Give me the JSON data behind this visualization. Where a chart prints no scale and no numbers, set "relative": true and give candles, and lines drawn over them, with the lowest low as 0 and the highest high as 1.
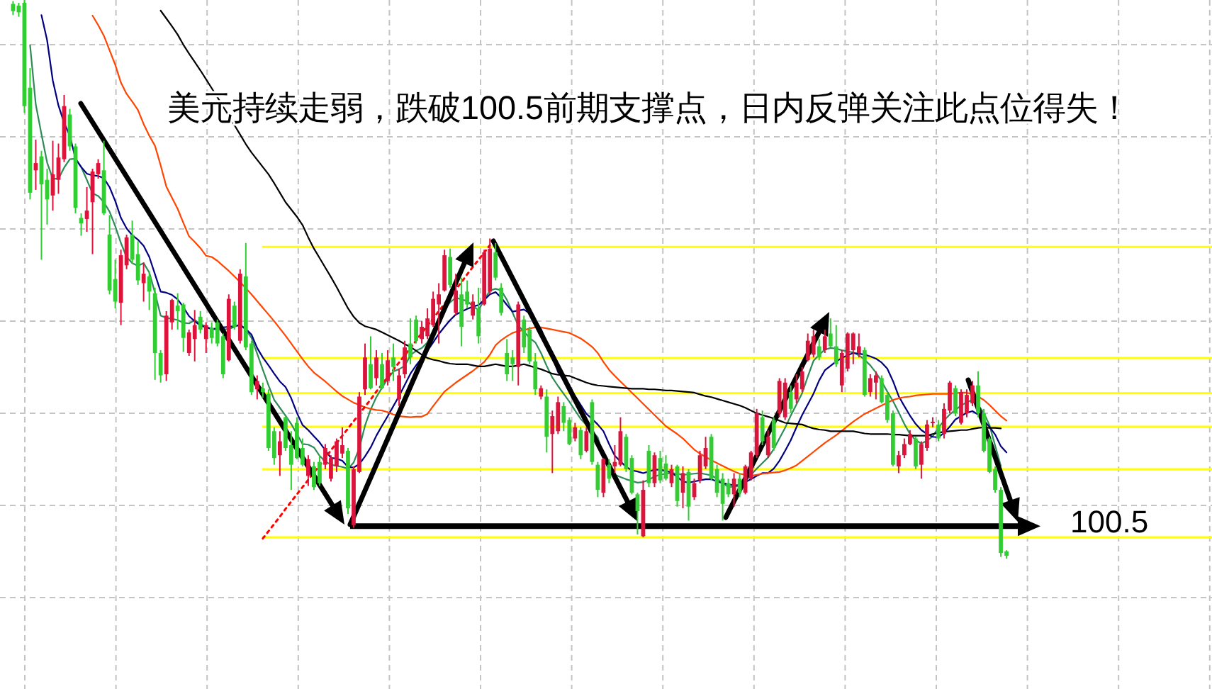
{
  "chart_data": {
    "type": "candlestick",
    "relative": true,
    "grid": true,
    "title": "美元持续走弱，跌破100.5前期支撑点，日内反弹关注此点位得失！",
    "annotations": [
      "100.5"
    ],
    "categories": [
      null,
      null,
      null,
      null,
      null,
      null,
      null,
      null,
      null,
      null,
      null,
      null,
      null,
      null,
      null,
      null,
      null,
      null,
      null,
      null,
      null,
      null,
      null,
      null,
      null,
      null,
      null,
      null,
      null,
      null,
      null,
      null,
      null,
      null,
      null,
      null,
      null,
      null,
      null,
      null,
      null,
      null,
      null,
      null,
      null,
      null,
      null,
      null,
      null,
      null,
      null,
      null,
      null,
      null,
      null,
      null,
      null,
      null,
      null,
      null,
      null,
      null,
      null,
      null,
      null,
      null,
      null,
      null,
      null,
      null,
      null,
      null,
      null,
      null,
      null,
      null,
      null,
      null,
      null,
      null,
      null,
      null,
      null,
      null,
      null,
      null,
      null,
      null,
      null,
      null,
      null,
      null,
      null,
      null,
      null,
      null,
      null,
      null,
      null,
      null,
      null,
      null,
      null,
      null,
      null,
      null,
      null,
      null,
      null,
      null,
      null,
      null,
      null,
      null,
      null,
      null,
      null,
      null,
      null,
      null,
      null,
      null,
      null,
      null,
      null,
      null,
      null,
      null,
      null,
      null,
      null,
      null,
      null,
      null,
      null,
      null,
      null,
      null,
      null,
      null,
      null,
      null,
      null,
      null,
      null,
      null,
      null,
      null,
      null,
      null,
      null,
      null,
      null,
      null,
      null,
      null,
      null,
      null,
      null,
      null,
      null,
      null,
      null,
      null,
      null,
      null,
      null,
      null,
      null,
      null,
      null,
      null,
      null,
      null,
      null,
      null
    ],
    "ohlc": [
      [
        0.993,
        0.998,
        0.973,
        0.98
      ],
      [
        0.99,
        0.995,
        0.97,
        0.978
      ],
      [
        0.995,
        1,
        0.798,
        0.81
      ],
      [
        0.843,
        0.878,
        0.643,
        0.655
      ],
      [
        0.695,
        0.75,
        0.66,
        0.708
      ],
      [
        0.72,
        0.73,
        0.535,
        0.67
      ],
      [
        0.678,
        0.698,
        0.598,
        0.643
      ],
      [
        0.65,
        0.748,
        0.623,
        0.688
      ],
      [
        0.678,
        0.743,
        0.653,
        0.718
      ],
      [
        0.715,
        0.83,
        0.71,
        0.81
      ],
      [
        0.795,
        0.805,
        0.73,
        0.738
      ],
      [
        0.738,
        0.743,
        0.618,
        0.628
      ],
      [
        0.61,
        0.618,
        0.578,
        0.6
      ],
      [
        0.608,
        0.665,
        0.585,
        0.623
      ],
      [
        0.638,
        0.698,
        0.545,
        0.693
      ],
      [
        0.688,
        0.715,
        0.68,
        0.708
      ],
      [
        0.695,
        0.748,
        0.615,
        0.618
      ],
      [
        0.58,
        0.615,
        0.473,
        0.48
      ],
      [
        0.5,
        0.535,
        0.448,
        0.46
      ],
      [
        0.458,
        0.553,
        0.418,
        0.543
      ],
      [
        0.525,
        0.58,
        0.518,
        0.575
      ],
      [
        0.58,
        0.605,
        0.528,
        0.535
      ],
      [
        0.545,
        0.568,
        0.49,
        0.498
      ],
      [
        0.493,
        0.53,
        0.46,
        0.51
      ],
      [
        0.505,
        0.515,
        0.445,
        0.478
      ],
      [
        0.475,
        0.485,
        0.32,
        0.368
      ],
      [
        0.368,
        0.373,
        0.315,
        0.328
      ],
      [
        0.33,
        0.443,
        0.318,
        0.435
      ],
      [
        0.423,
        0.465,
        0.41,
        0.463
      ],
      [
        0.453,
        0.475,
        0.41,
        0.443
      ],
      [
        0.455,
        0.458,
        0.37,
        0.395
      ],
      [
        0.368,
        0.41,
        0.363,
        0.405
      ],
      [
        0.393,
        0.445,
        0.353,
        0.418
      ],
      [
        0.433,
        0.443,
        0.403,
        0.41
      ],
      [
        0.393,
        0.423,
        0.368,
        0.418
      ],
      [
        0.413,
        0.423,
        0.385,
        0.395
      ],
      [
        0.423,
        0.428,
        0.38,
        0.385
      ],
      [
        0.398,
        0.403,
        0.323,
        0.33
      ],
      [
        0.355,
        0.473,
        0.353,
        0.465
      ],
      [
        0.453,
        0.46,
        0.41,
        0.415
      ],
      [
        0.39,
        0.518,
        0.385,
        0.51
      ],
      [
        0.505,
        0.565,
        0.373,
        0.378
      ],
      [
        0.385,
        0.39,
        0.293,
        0.298
      ],
      [
        0.303,
        0.328,
        0.285,
        0.318
      ],
      [
        0.305,
        0.315,
        0.288,
        0.298
      ],
      [
        0.295,
        0.303,
        0.193,
        0.198
      ],
      [
        0.228,
        0.235,
        0.168,
        0.18
      ],
      [
        0.185,
        0.228,
        0.148,
        0.21
      ],
      [
        0.253,
        0.255,
        0.193,
        0.198
      ],
      [
        0.203,
        0.228,
        0.123,
        0.168
      ],
      [
        0.243,
        0.253,
        0.178,
        0.18
      ],
      [
        0.198,
        0.215,
        0.165,
        0.168
      ],
      [
        0.148,
        0.185,
        0.13,
        0.178
      ],
      [
        0.165,
        0.173,
        0.123,
        0.128
      ],
      [
        0.173,
        0.185,
        0.13,
        0.135
      ],
      [
        0.168,
        0.205,
        0.16,
        0.198
      ],
      [
        0.143,
        0.185,
        0.138,
        0.18
      ],
      [
        0.165,
        0.215,
        0.155,
        0.21
      ],
      [
        0.188,
        0.235,
        0.18,
        0.203
      ],
      [
        0.193,
        0.198,
        0.08,
        0.09
      ],
      [
        0.06,
        0.165,
        0.055,
        0.16
      ],
      [
        0.155,
        0.298,
        0.153,
        0.29
      ],
      [
        0.303,
        0.385,
        0.293,
        0.36
      ],
      [
        0.348,
        0.398,
        0.303,
        0.305
      ],
      [
        0.323,
        0.373,
        0.31,
        0.36
      ],
      [
        0.348,
        0.368,
        0.303,
        0.305
      ],
      [
        0.318,
        0.373,
        0.31,
        0.355
      ],
      [
        0.36,
        0.385,
        0.318,
        0.343
      ],
      [
        0.285,
        0.34,
        0.273,
        0.328
      ],
      [
        0.33,
        0.39,
        0.323,
        0.378
      ],
      [
        0.385,
        0.43,
        0.348,
        0.36
      ],
      [
        0.428,
        0.435,
        0.385,
        0.39
      ],
      [
        0.393,
        0.425,
        0.385,
        0.415
      ],
      [
        0.398,
        0.448,
        0.393,
        0.43
      ],
      [
        0.418,
        0.478,
        0.415,
        0.465
      ],
      [
        0.455,
        0.493,
        0.385,
        0.473
      ],
      [
        0.48,
        0.553,
        0.478,
        0.543
      ],
      [
        0.54,
        0.555,
        0.485,
        0.49
      ],
      [
        0.44,
        0.51,
        0.435,
        0.48
      ],
      [
        0.473,
        0.503,
        0.38,
        0.415
      ],
      [
        0.478,
        0.498,
        0.448,
        0.455
      ],
      [
        0.435,
        0.473,
        0.428,
        0.46
      ],
      [
        0.448,
        0.485,
        0.385,
        0.398
      ],
      [
        0.455,
        0.553,
        0.453,
        0.548
      ],
      [
        0.478,
        0.573,
        0.473,
        0.555
      ],
      [
        0.548,
        0.565,
        0.498,
        0.503
      ],
      [
        0.485,
        0.493,
        0.435,
        0.44
      ],
      [
        0.368,
        0.393,
        0.318,
        0.33
      ],
      [
        0.36,
        0.373,
        0.318,
        0.348
      ],
      [
        0.343,
        0.46,
        0.31,
        0.455
      ],
      [
        0.428,
        0.435,
        0.368,
        0.378
      ],
      [
        0.41,
        0.415,
        0.348,
        0.353
      ],
      [
        0.353,
        0.368,
        0.293,
        0.303
      ],
      [
        0.29,
        0.31,
        0.285,
        0.305
      ],
      [
        0.29,
        0.303,
        0.19,
        0.218
      ],
      [
        0.223,
        0.265,
        0.153,
        0.255
      ],
      [
        0.228,
        0.29,
        0.223,
        0.28
      ],
      [
        0.273,
        0.28,
        0.228,
        0.243
      ],
      [
        0.248,
        0.253,
        0.203,
        0.205
      ],
      [
        0.215,
        0.243,
        0.21,
        0.235
      ],
      [
        0.23,
        0.235,
        0.178,
        0.185
      ],
      [
        0.193,
        0.235,
        0.19,
        0.228
      ],
      [
        0.28,
        0.285,
        0.168,
        0.173
      ],
      [
        0.168,
        0.173,
        0.11,
        0.123
      ],
      [
        0.118,
        0.18,
        0.11,
        0.178
      ],
      [
        0.168,
        0.178,
        0.135,
        0.143
      ],
      [
        0.165,
        0.203,
        0.153,
        0.173
      ],
      [
        0.168,
        0.253,
        0.165,
        0.228
      ],
      [
        0.218,
        0.223,
        0.155,
        0.16
      ],
      [
        0.18,
        0.185,
        0.115,
        0.118
      ],
      [
        0.115,
        0.118,
        0.043,
        0.085
      ],
      [
        0.04,
        0.14,
        0.038,
        0.123
      ],
      [
        0.193,
        0.203,
        0.128,
        0.135
      ],
      [
        0.135,
        0.19,
        0.128,
        0.185
      ],
      [
        0.18,
        0.193,
        0.135,
        0.14
      ],
      [
        0.17,
        0.185,
        0.14,
        0.143
      ],
      [
        0.135,
        0.168,
        0.128,
        0.16
      ],
      [
        0.165,
        0.168,
        0.093,
        0.103
      ],
      [
        0.118,
        0.165,
        0.09,
        0.153
      ],
      [
        0.155,
        0.16,
        0.068,
        0.093
      ],
      [
        0.11,
        0.143,
        0.105,
        0.135
      ],
      [
        0.14,
        0.193,
        0.135,
        0.185
      ],
      [
        0.165,
        0.218,
        0.16,
        0.198
      ],
      [
        0.218,
        0.223,
        0.14,
        0.143
      ],
      [
        0.16,
        0.168,
        0.11,
        0.118
      ],
      [
        0.143,
        0.153,
        0.068,
        0.098
      ],
      [
        0.135,
        0.143,
        0.11,
        0.115
      ],
      [
        0.115,
        0.153,
        0.093,
        0.143
      ],
      [
        0.143,
        0.153,
        0.11,
        0.118
      ],
      [
        0.118,
        0.168,
        0.115,
        0.165
      ],
      [
        0.143,
        0.193,
        0.14,
        0.19
      ],
      [
        0.185,
        0.268,
        0.18,
        0.26
      ],
      [
        0.253,
        0.265,
        0.203,
        0.21
      ],
      [
        0.185,
        0.23,
        0.18,
        0.218
      ],
      [
        0.248,
        0.253,
        0.193,
        0.198
      ],
      [
        0.26,
        0.323,
        0.253,
        0.318
      ],
      [
        0.253,
        0.323,
        0.248,
        0.315
      ],
      [
        0.298,
        0.31,
        0.26,
        0.268
      ],
      [
        0.285,
        0.33,
        0.278,
        0.315
      ],
      [
        0.303,
        0.343,
        0.298,
        0.335
      ],
      [
        0.355,
        0.403,
        0.353,
        0.39
      ],
      [
        0.365,
        0.41,
        0.36,
        0.398
      ],
      [
        0.38,
        0.393,
        0.355,
        0.36
      ],
      [
        0.373,
        0.41,
        0.368,
        0.398
      ],
      [
        0.403,
        0.43,
        0.378,
        0.38
      ],
      [
        0.38,
        0.418,
        0.343,
        0.348
      ],
      [
        0.31,
        0.373,
        0.298,
        0.368
      ],
      [
        0.34,
        0.405,
        0.335,
        0.403
      ],
      [
        0.373,
        0.405,
        0.348,
        0.403
      ],
      [
        0.368,
        0.403,
        0.36,
        0.38
      ],
      [
        0.373,
        0.378,
        0.29,
        0.293
      ],
      [
        0.298,
        0.33,
        0.29,
        0.323
      ],
      [
        0.315,
        0.335,
        0.285,
        0.328
      ],
      [
        0.323,
        0.328,
        0.278,
        0.28
      ],
      [
        0.293,
        0.298,
        0.243,
        0.248
      ],
      [
        0.26,
        0.265,
        0.165,
        0.168
      ],
      [
        0.165,
        0.193,
        0.153,
        0.185
      ],
      [
        0.185,
        0.215,
        0.18,
        0.205
      ],
      [
        0.205,
        0.23,
        0.203,
        0.223
      ],
      [
        0.215,
        0.218,
        0.16,
        0.165
      ],
      [
        0.168,
        0.21,
        0.143,
        0.205
      ],
      [
        0.198,
        0.248,
        0.193,
        0.24
      ],
      [
        0.243,
        0.253,
        0.235,
        0.245
      ],
      [
        0.24,
        0.248,
        0.21,
        0.215
      ],
      [
        0.223,
        0.278,
        0.215,
        0.268
      ],
      [
        0.265,
        0.318,
        0.26,
        0.315
      ],
      [
        0.305,
        0.31,
        0.255,
        0.26
      ],
      [
        0.243,
        0.303,
        0.24,
        0.298
      ],
      [
        0.26,
        0.303,
        0.253,
        0.293
      ],
      [
        0.278,
        0.318,
        0.273,
        0.31
      ],
      [
        0.31,
        0.335,
        0.253,
        0.26
      ],
      [
        0.26,
        0.268,
        0.19,
        0.193
      ],
      [
        0.215,
        0.218,
        0.153,
        0.155
      ],
      [
        0.16,
        0.165,
        0.118,
        0.123
      ],
      [
        0.123,
        0.128,
        0.003,
        0.01
      ],
      [
        0.013,
        0.015,
        0,
        0.005
      ]
    ],
    "colors": [
      "#32cd32",
      "#32cd32",
      "#32cd32",
      "#32cd32",
      "#dc143c",
      "#32cd32",
      "#32cd32",
      "#dc143c",
      "#dc143c",
      "#dc143c",
      "#32cd32",
      "#32cd32",
      "#32cd32",
      "#dc143c",
      "#dc143c",
      "#dc143c",
      "#32cd32",
      "#32cd32",
      "#32cd32",
      "#dc143c",
      "#dc143c",
      "#32cd32",
      "#32cd32",
      "#dc143c",
      "#32cd32",
      "#32cd32",
      "#32cd32",
      "#dc143c",
      "#dc143c",
      "#32cd32",
      "#32cd32",
      "#dc143c",
      "#dc143c",
      "#32cd32",
      "#dc143c",
      "#32cd32",
      "#32cd32",
      "#32cd32",
      "#dc143c",
      "#32cd32",
      "#dc143c",
      "#32cd32",
      "#32cd32",
      "#dc143c",
      "#32cd32",
      "#32cd32",
      "#32cd32",
      "#dc143c",
      "#32cd32",
      "#32cd32",
      "#32cd32",
      "#32cd32",
      "#dc143c",
      "#32cd32",
      "#32cd32",
      "#dc143c",
      "#dc143c",
      "#dc143c",
      "#dc143c",
      "#32cd32",
      "#dc143c",
      "#dc143c",
      "#dc143c",
      "#32cd32",
      "#dc143c",
      "#32cd32",
      "#dc143c",
      "#32cd32",
      "#dc143c",
      "#dc143c",
      "#32cd32",
      "#32cd32",
      "#dc143c",
      "#dc143c",
      "#dc143c",
      "#dc143c",
      "#dc143c",
      "#32cd32",
      "#dc143c",
      "#32cd32",
      "#32cd32",
      "#dc143c",
      "#32cd32",
      "#dc143c",
      "#dc143c",
      "#32cd32",
      "#32cd32",
      "#32cd32",
      "#32cd32",
      "#dc143c",
      "#32cd32",
      "#32cd32",
      "#32cd32",
      "#dc143c",
      "#32cd32",
      "#dc143c",
      "#dc143c",
      "#32cd32",
      "#32cd32",
      "#dc143c",
      "#32cd32",
      "#dc143c",
      "#32cd32",
      "#32cd32",
      "#dc143c",
      "#32cd32",
      "#dc143c",
      "#dc143c",
      "#32cd32",
      "#32cd32",
      "#32cd32",
      "#dc143c",
      "#32cd32",
      "#dc143c",
      "#32cd32",
      "#32cd32",
      "#dc143c",
      "#32cd32",
      "#dc143c",
      "#32cd32",
      "#dc143c",
      "#dc143c",
      "#dc143c",
      "#32cd32",
      "#32cd32",
      "#32cd32",
      "#32cd32",
      "#dc143c",
      "#32cd32",
      "#dc143c",
      "#dc143c",
      "#dc143c",
      "#32cd32",
      "#dc143c",
      "#32cd32",
      "#dc143c",
      "#dc143c",
      "#32cd32",
      "#dc143c",
      "#dc143c",
      "#dc143c",
      "#dc143c",
      "#32cd32",
      "#dc143c",
      "#32cd32",
      "#32cd32",
      "#dc143c",
      "#dc143c",
      "#dc143c",
      "#dc143c",
      "#32cd32",
      "#dc143c",
      "#dc143c",
      "#32cd32",
      "#32cd32",
      "#32cd32",
      "#dc143c",
      "#dc143c",
      "#dc143c",
      "#32cd32",
      "#dc143c",
      "#dc143c",
      "#dc143c",
      "#32cd32",
      "#dc143c",
      "#dc143c",
      "#32cd32",
      "#dc143c",
      "#dc143c",
      "#dc143c",
      "#32cd32",
      "#32cd32",
      "#32cd32",
      "#32cd32",
      "#32cd32",
      "#32cd32"
    ],
    "series": [
      {
        "type": "line",
        "color": "#2e8b57",
        "values": [
          null,
          null,
          null,
          0.919,
          0.813,
          0.76,
          0.709,
          0.68,
          0.68,
          0.7,
          0.715,
          0.716,
          0.701,
          0.678,
          0.654,
          0.649,
          0.638,
          0.621,
          0.595,
          0.565,
          0.54,
          0.529,
          0.524,
          0.529,
          0.512,
          0.476,
          0.435,
          0.431,
          0.429,
          0.427,
          0.422,
          0.421,
          0.427,
          0.42,
          0.415,
          0.411,
          0.41,
          0.41,
          0.411,
          0.415,
          0.419,
          0.41,
          0.395,
          0.367,
          0.338,
          0.31,
          0.284,
          0.27,
          0.256,
          0.241,
          0.223,
          0.205,
          0.204,
          0.199,
          0.184,
          0.174,
          0.168,
          0.166,
          0.164,
          0.161,
          0.172,
          0.198,
          0.238,
          0.267,
          0.289,
          0.306,
          0.322,
          0.335,
          0.339,
          0.345,
          0.364,
          0.372,
          0.377,
          0.387,
          0.409,
          0.431,
          0.446,
          0.459,
          0.467,
          0.464,
          0.461,
          0.452,
          0.445,
          0.463,
          0.48,
          0.483,
          0.48,
          0.463,
          0.44,
          0.417,
          0.406,
          0.395,
          0.387,
          0.368,
          0.345,
          0.324,
          0.309,
          0.295,
          0.281,
          0.265,
          0.25,
          0.239,
          0.228,
          0.217,
          0.183,
          0.158,
          0.15,
          0.146,
          0.142,
          0.139,
          0.136,
          0.137,
          0.141,
          0.147,
          0.15,
          0.152,
          0.153,
          0.152,
          0.15,
          0.151,
          0.152,
          0.153,
          0.151,
          0.149,
          0.143,
          0.135,
          0.128,
          0.129,
          0.13,
          0.139,
          0.15,
          0.161,
          0.171,
          0.181,
          0.196,
          0.215,
          0.234,
          0.256,
          0.276,
          0.296,
          0.326,
          0.354,
          0.365,
          0.374,
          0.377,
          0.376,
          0.373,
          0.371,
          0.369,
          0.364,
          0.356,
          0.346,
          0.333,
          0.317,
          0.299,
          0.282,
          0.262,
          0.241,
          0.223,
          0.212,
          0.206,
          0.211,
          0.219,
          0.234,
          0.247,
          0.258,
          0.266,
          0.274,
          0.28,
          0.284,
          0.275,
          0.261,
          0.239,
          0.202,
          0.166,
          null
        ]
      },
      {
        "type": "line",
        "color": "#000080",
        "values": [
          null,
          null,
          null,
          null,
          null,
          0.973,
          0.928,
          0.856,
          0.811,
          0.78,
          0.757,
          0.716,
          0.701,
          0.689,
          0.686,
          0.685,
          0.681,
          0.665,
          0.64,
          0.61,
          0.591,
          0.579,
          0.571,
          0.56,
          0.54,
          0.509,
          0.478,
          0.476,
          0.472,
          0.464,
          0.45,
          0.434,
          0.425,
          0.417,
          0.414,
          0.411,
          0.412,
          0.414,
          0.415,
          0.416,
          0.418,
          0.411,
          0.401,
          0.377,
          0.36,
          0.346,
          0.331,
          0.317,
          0.307,
          0.287,
          0.261,
          0.239,
          0.23,
          0.219,
          0.208,
          0.194,
          0.18,
          0.179,
          0.175,
          0.164,
          0.163,
          0.169,
          0.183,
          0.199,
          0.22,
          0.238,
          0.255,
          0.273,
          0.291,
          0.311,
          0.331,
          0.346,
          0.359,
          0.372,
          0.387,
          0.402,
          0.415,
          0.427,
          0.437,
          0.442,
          0.447,
          0.451,
          0.454,
          0.463,
          0.473,
          0.477,
          0.467,
          0.454,
          0.442,
          0.444,
          0.446,
          0.439,
          0.427,
          0.411,
          0.387,
          0.361,
          0.334,
          0.32,
          0.306,
          0.291,
          0.275,
          0.259,
          0.25,
          0.24,
          0.228,
          0.205,
          0.184,
          0.174,
          0.164,
          0.158,
          0.156,
          0.153,
          0.156,
          0.159,
          0.159,
          0.157,
          0.154,
          0.146,
          0.138,
          0.136,
          0.138,
          0.14,
          0.142,
          0.142,
          0.138,
          0.135,
          0.133,
          0.131,
          0.132,
          0.137,
          0.142,
          0.148,
          0.153,
          0.153,
          0.161,
          0.175,
          0.193,
          0.212,
          0.235,
          0.257,
          0.276,
          0.295,
          0.319,
          0.337,
          0.345,
          0.353,
          0.359,
          0.364,
          0.368,
          0.367,
          0.365,
          0.362,
          0.358,
          0.351,
          0.34,
          0.318,
          0.291,
          0.273,
          0.256,
          0.241,
          0.23,
          0.223,
          0.218,
          0.217,
          0.225,
          0.236,
          0.249,
          0.255,
          0.261,
          0.264,
          0.258,
          0.247,
          0.236,
          0.222,
          0.201,
          0.19
        ]
      },
      {
        "type": "line",
        "color": "#ff4500",
        "values": [
          null,
          null,
          null,
          null,
          null,
          null,
          null,
          null,
          null,
          null,
          null,
          null,
          null,
          null,
          0.972,
          0.955,
          0.936,
          0.91,
          0.884,
          0.852,
          0.832,
          0.818,
          0.803,
          0.778,
          0.757,
          0.739,
          0.704,
          0.666,
          0.646,
          0.626,
          0.601,
          0.577,
          0.567,
          0.556,
          0.542,
          0.54,
          0.533,
          0.524,
          0.515,
          0.505,
          0.495,
          0.484,
          0.473,
          0.461,
          0.449,
          0.437,
          0.425,
          0.412,
          0.399,
          0.385,
          0.371,
          0.357,
          0.344,
          0.333,
          0.325,
          0.317,
          0.308,
          0.299,
          0.291,
          0.285,
          0.279,
          0.275,
          0.271,
          0.268,
          0.266,
          0.265,
          0.262,
          0.258,
          0.255,
          0.254,
          0.253,
          0.254,
          0.254,
          0.259,
          0.273,
          0.286,
          0.299,
          0.307,
          0.315,
          0.322,
          0.329,
          0.336,
          0.344,
          0.352,
          0.365,
          0.382,
          0.391,
          0.398,
          0.404,
          0.407,
          0.409,
          0.412,
          0.414,
          0.414,
          0.412,
          0.41,
          0.408,
          0.406,
          0.404,
          0.399,
          0.394,
          0.387,
          0.379,
          0.368,
          0.352,
          0.338,
          0.327,
          0.317,
          0.307,
          0.297,
          0.287,
          0.277,
          0.267,
          0.257,
          0.247,
          0.237,
          0.23,
          0.223,
          0.215,
          0.205,
          0.195,
          0.188,
          0.182,
          0.176,
          0.171,
          0.166,
          0.161,
          0.156,
          0.152,
          0.15,
          0.148,
          0.15,
          0.152,
          0.153,
          0.154,
          0.155,
          0.158,
          0.162,
          0.167,
          0.175,
          0.183,
          0.191,
          0.199,
          0.207,
          0.214,
          0.221,
          0.229,
          0.237,
          0.245,
          0.252,
          0.259,
          0.264,
          0.269,
          0.274,
          0.279,
          0.284,
          0.287,
          0.289,
          0.29,
          0.292,
          0.293,
          0.294,
          0.295,
          0.295,
          0.295,
          0.295,
          0.296,
          0.297,
          0.297,
          0.294,
          0.29,
          0.284,
          0.275,
          0.265,
          0.255,
          0.247
        ]
      },
      {
        "type": "line",
        "color": "#000000",
        "values": [
          null,
          null,
          null,
          null,
          null,
          null,
          null,
          null,
          null,
          null,
          null,
          null,
          null,
          null,
          null,
          null,
          null,
          null,
          null,
          null,
          null,
          null,
          null,
          null,
          null,
          null,
          0.981,
          0.967,
          0.953,
          0.938,
          0.92,
          0.904,
          0.889,
          0.874,
          0.858,
          0.842,
          0.826,
          0.809,
          0.793,
          0.776,
          0.759,
          0.742,
          0.727,
          0.714,
          0.701,
          0.688,
          0.672,
          0.655,
          0.638,
          0.625,
          0.612,
          0.597,
          0.575,
          0.555,
          0.538,
          0.521,
          0.504,
          0.486,
          0.467,
          0.448,
          0.433,
          0.422,
          0.416,
          0.413,
          0.41,
          0.405,
          0.4,
          0.395,
          0.39,
          0.384,
          0.379,
          0.372,
          0.365,
          0.359,
          0.356,
          0.354,
          0.351,
          0.349,
          0.348,
          0.348,
          0.348,
          0.346,
          0.344,
          0.344,
          0.346,
          0.348,
          0.346,
          0.344,
          0.344,
          0.346,
          0.348,
          0.345,
          0.342,
          0.339,
          0.335,
          0.331,
          0.329,
          0.328,
          0.327,
          0.323,
          0.319,
          0.315,
          0.312,
          0.31,
          0.309,
          0.308,
          0.307,
          0.306,
          0.305,
          0.304,
          0.304,
          0.304,
          0.303,
          0.303,
          0.302,
          0.301,
          0.301,
          0.3,
          0.299,
          0.298,
          0.297,
          0.294,
          0.291,
          0.289,
          0.286,
          0.283,
          0.28,
          0.277,
          0.274,
          0.27,
          0.265,
          0.26,
          0.257,
          0.254,
          0.251,
          0.247,
          0.243,
          0.242,
          0.241,
          0.24,
          0.236,
          0.233,
          0.231,
          0.23,
          0.228,
          0.228,
          0.228,
          0.228,
          0.228,
          0.226,
          0.224,
          0.223,
          0.223,
          0.223,
          0.223,
          0.222,
          0.222,
          0.221,
          0.22,
          0.22,
          0.22,
          0.22,
          0.223,
          0.225,
          0.227,
          0.228,
          0.229,
          0.23,
          0.23,
          0.232,
          0.234,
          0.235,
          0.234,
          0.234,
          0.233,
          null
        ]
      },
      {
        "type": "line",
        "color": "#ff0000",
        "line_style": "dotted",
        "values": [
          null,
          null,
          null,
          null,
          null,
          null,
          null,
          null,
          null,
          null,
          null,
          null,
          null,
          null,
          null,
          null,
          null,
          null,
          null,
          null,
          null,
          null,
          null,
          null,
          null,
          null,
          null,
          null,
          null,
          null,
          null,
          null,
          null,
          null,
          null,
          null,
          null,
          null,
          null,
          null,
          null,
          null,
          null,
          null,
          0.036,
          0.049,
          0.062,
          0.075,
          0.089,
          0.102,
          0.115,
          0.128,
          0.141,
          0.154,
          0.167,
          0.18,
          0.194,
          0.207,
          0.22,
          0.233,
          0.246,
          0.259,
          0.272,
          0.285,
          0.299,
          0.312,
          0.325,
          0.338,
          0.351,
          0.364,
          0.377,
          0.39,
          0.404,
          0.417,
          0.43,
          0.443,
          0.456,
          0.469,
          0.482,
          0.495,
          0.509,
          0.522,
          0.535,
          0.548,
          0.561,
          null,
          null,
          null,
          null,
          null,
          null,
          null,
          null,
          null,
          null,
          null,
          null,
          null,
          null,
          null,
          null,
          null,
          null,
          null,
          null,
          null,
          null,
          null,
          null,
          null,
          null,
          null,
          null,
          null,
          null,
          null,
          null,
          null,
          null,
          null,
          null,
          null,
          null,
          null,
          null,
          null,
          null,
          null,
          null,
          null,
          null,
          null,
          null,
          null,
          null,
          null,
          null,
          null,
          null,
          null,
          null,
          null,
          null,
          null,
          null,
          null,
          null,
          null,
          null,
          null,
          null,
          null,
          null,
          null,
          null,
          null,
          null,
          null,
          null,
          null,
          null,
          null,
          null,
          null,
          null,
          null,
          null,
          null,
          null,
          null,
          null,
          null,
          null,
          null,
          null,
          null
        ]
      }
    ],
    "ref_lines": [
      {
        "axis": "y",
        "value": 0.558,
        "color": "#ffff00"
      },
      {
        "axis": "y",
        "value": 0.359,
        "color": "#ffff00"
      },
      {
        "axis": "y",
        "value": 0.296,
        "color": "#ffff00"
      },
      {
        "axis": "y",
        "value": 0.236,
        "color": "#ffff00"
      },
      {
        "axis": "y",
        "value": 0.16,
        "color": "#ffff00"
      },
      {
        "axis": "y",
        "value": 0.038,
        "color": "#ffff00"
      },
      {
        "axis": "y",
        "value": 0.058,
        "color": "#000000"
      }
    ]
  }
}
